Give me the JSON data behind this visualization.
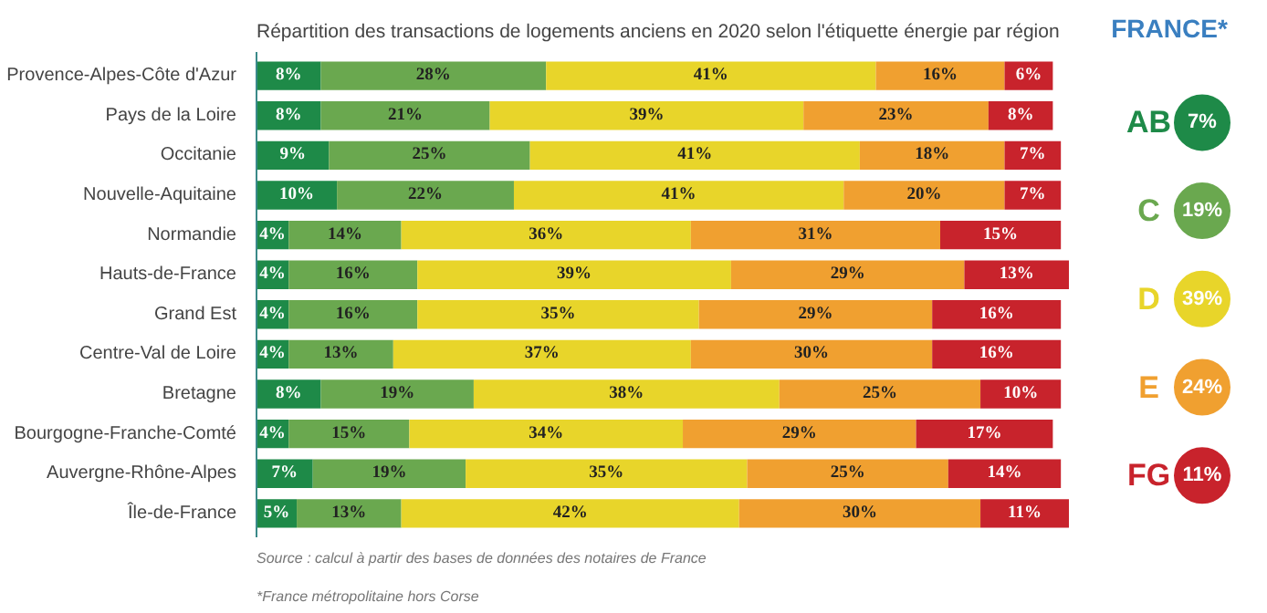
{
  "chart_data": [
    {
      "type": "bar",
      "orientation": "horizontal",
      "stacked": true,
      "title": "Répartition des transactions de logements anciens en 2020 selon l'étiquette énergie par région",
      "categories": [
        "Provence-Alpes-Côte d'Azur",
        "Pays de la Loire",
        "Occitanie",
        "Nouvelle-Aquitaine",
        "Normandie",
        "Hauts-de-France",
        "Grand Est",
        "Centre-Val de Loire",
        "Bretagne",
        "Bourgogne-Franche-Comté",
        "Auvergne-Rhône-Alpes",
        "Île-de-France"
      ],
      "series": [
        {
          "color": "#1e8a48",
          "values": [
            8,
            8,
            9,
            10,
            4,
            4,
            4,
            4,
            8,
            4,
            7,
            5
          ],
          "value_labels": [
            "8%",
            "8%",
            "9%",
            "10%",
            "4%",
            "4%",
            "4%",
            "4%",
            "8%",
            "4%",
            "7%",
            "5%"
          ]
        },
        {
          "color": "#6aa84f",
          "values": [
            28,
            21,
            25,
            22,
            14,
            16,
            16,
            13,
            19,
            15,
            19,
            13
          ],
          "value_labels": [
            "28%",
            "21%",
            "25%",
            "22%",
            "14%",
            "16%",
            "16%",
            "13%",
            "19%",
            "15%",
            "19%",
            "13%"
          ]
        },
        {
          "color": "#e8d52a",
          "values": [
            41,
            39,
            41,
            41,
            36,
            39,
            35,
            37,
            38,
            34,
            35,
            42
          ],
          "value_labels": [
            "41%",
            "39%",
            "41%",
            "41%",
            "36%",
            "39%",
            "35%",
            "37%",
            "38%",
            "34%",
            "35%",
            "42%"
          ]
        },
        {
          "color": "#f0a030",
          "values": [
            16,
            23,
            18,
            20,
            31,
            29,
            29,
            30,
            25,
            29,
            25,
            30
          ],
          "value_labels": [
            "16%",
            "23%",
            "18%",
            "20%",
            "31%",
            "29%",
            "29%",
            "30%",
            "25%",
            "29%",
            "25%",
            "30%"
          ]
        },
        {
          "color": "#c8232c",
          "values": [
            6,
            8,
            7,
            7,
            15,
            13,
            16,
            16,
            10,
            17,
            14,
            11
          ],
          "value_labels": [
            "6%",
            "8%",
            "7%",
            "7%",
            "15%",
            "13%",
            "16%",
            "16%",
            "10%",
            "17%",
            "14%",
            "11%"
          ]
        }
      ],
      "annotations": [
        "Source : calcul à partir des bases de données des notaires de France",
        "*France métropolitaine hors Corse"
      ]
    },
    {
      "type": "other",
      "title": "FRANCE*",
      "categories": [
        "AB",
        "C",
        "D",
        "E",
        "FG"
      ],
      "colors": [
        "#1e8a48",
        "#6aa84f",
        "#e8d52a",
        "#f0a030",
        "#c8232c"
      ],
      "value_labels": [
        "7%",
        "19%",
        "39%",
        "24%",
        "11%"
      ]
    }
  ]
}
